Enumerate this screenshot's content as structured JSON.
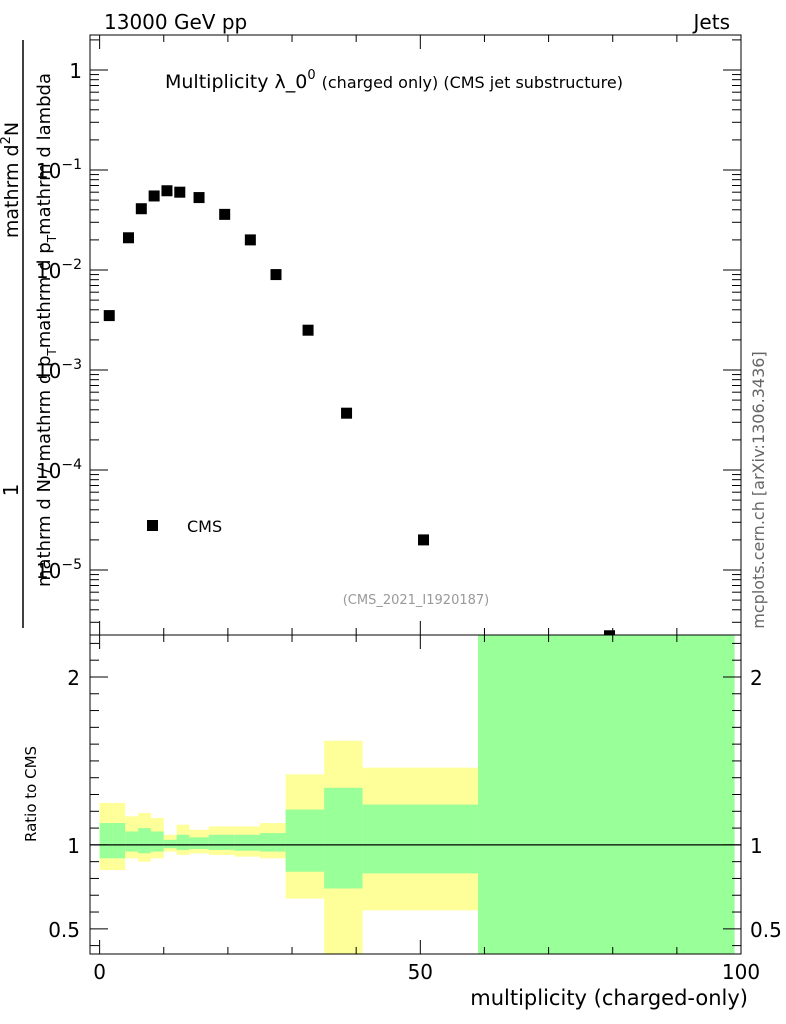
{
  "header": {
    "left": "13000 GeV pp",
    "right": "Jets"
  },
  "side_label": "mcplots.cern.ch [arXiv:1306.3436]",
  "chart_data": [
    {
      "type": "scatter",
      "title": "Multiplicity λ_0",
      "title_sup": "0",
      "subtitle": "(charged only) (CMS jet substructure)",
      "analysis_id": "(CMS_2021_I1920187)",
      "ylabel_top": "1",
      "ylabel_num": "mathrm d",
      "ylabel_num_sup": "2",
      "ylabel_num_tail": "N",
      "ylabel_den": "mathrm d N / mathrm d p",
      "ylabel_den_sub": "T",
      "ylabel_den_tail": "mathrm d p",
      "ylabel_den_sub2": "T",
      "ylabel_den_tail2": "mathrm d lambda",
      "xlim": [
        -1.5,
        100
      ],
      "ylim_log10": [
        -5.65,
        0.35
      ],
      "yscale": "log",
      "yticks": [
        {
          "value": 1,
          "label": "1"
        },
        {
          "value": 0.1,
          "label": "10",
          "sup": "−1"
        },
        {
          "value": 0.01,
          "label": "10",
          "sup": "−2"
        },
        {
          "value": 0.001,
          "label": "10",
          "sup": "−3"
        },
        {
          "value": 0.0001,
          "label": "10",
          "sup": "−4"
        },
        {
          "value": 1e-05,
          "label": "10",
          "sup": "−5"
        }
      ],
      "legend": {
        "label": "CMS",
        "placement": "lower-left"
      },
      "series": [
        {
          "name": "CMS",
          "x": [
            1.5,
            4.5,
            6.5,
            8.5,
            10.5,
            12.5,
            15.5,
            19.5,
            23.5,
            27.5,
            32.5,
            38.5,
            50.5,
            79.5
          ],
          "y": [
            0.0035,
            0.021,
            0.041,
            0.055,
            0.062,
            0.06,
            0.053,
            0.036,
            0.02,
            0.009,
            0.0025,
            0.00037,
            2e-05,
            2.2e-06
          ]
        }
      ]
    },
    {
      "type": "area",
      "ylabel": "Ratio to CMS",
      "xlabel": "multiplicity (charged-only)",
      "xlim": [
        -1.5,
        100
      ],
      "ylim": [
        0.35,
        2.25
      ],
      "xticks": [
        0,
        50,
        100
      ],
      "yticks": [
        0.5,
        1,
        2
      ],
      "bins": [
        {
          "lo": 0,
          "hi": 2,
          "y_lo": 0.85,
          "y_hi": 1.25,
          "g_lo": 0.92,
          "g_hi": 1.13
        },
        {
          "lo": 2,
          "hi": 4,
          "y_lo": 0.85,
          "y_hi": 1.25,
          "g_lo": 0.92,
          "g_hi": 1.13
        },
        {
          "lo": 4,
          "hi": 6,
          "y_lo": 0.92,
          "y_hi": 1.17,
          "g_lo": 0.96,
          "g_hi": 1.08
        },
        {
          "lo": 6,
          "hi": 8,
          "y_lo": 0.9,
          "y_hi": 1.19,
          "g_lo": 0.95,
          "g_hi": 1.1
        },
        {
          "lo": 8,
          "hi": 10,
          "y_lo": 0.92,
          "y_hi": 1.16,
          "g_lo": 0.96,
          "g_hi": 1.08
        },
        {
          "lo": 10,
          "hi": 12,
          "y_lo": 0.96,
          "y_hi": 1.06,
          "g_lo": 0.98,
          "g_hi": 1.03
        },
        {
          "lo": 12,
          "hi": 14,
          "y_lo": 0.94,
          "y_hi": 1.12,
          "g_lo": 0.97,
          "g_hi": 1.06
        },
        {
          "lo": 14,
          "hi": 17,
          "y_lo": 0.95,
          "y_hi": 1.09,
          "g_lo": 0.975,
          "g_hi": 1.045
        },
        {
          "lo": 17,
          "hi": 21,
          "y_lo": 0.94,
          "y_hi": 1.11,
          "g_lo": 0.97,
          "g_hi": 1.06
        },
        {
          "lo": 21,
          "hi": 25,
          "y_lo": 0.93,
          "y_hi": 1.11,
          "g_lo": 0.965,
          "g_hi": 1.06
        },
        {
          "lo": 25,
          "hi": 29,
          "y_lo": 0.92,
          "y_hi": 1.13,
          "g_lo": 0.96,
          "g_hi": 1.07
        },
        {
          "lo": 29,
          "hi": 35,
          "y_lo": 0.68,
          "y_hi": 1.42,
          "g_lo": 0.84,
          "g_hi": 1.21
        },
        {
          "lo": 35,
          "hi": 41,
          "y_lo": 0.35,
          "y_hi": 1.62,
          "g_lo": 0.74,
          "g_hi": 1.34
        },
        {
          "lo": 41,
          "hi": 59,
          "y_lo": 0.61,
          "y_hi": 1.46,
          "g_lo": 0.83,
          "g_hi": 1.24
        },
        {
          "lo": 59,
          "hi": 99,
          "y_lo": 0.35,
          "y_hi": 2.25,
          "g_lo": 0.35,
          "g_hi": 2.25
        }
      ],
      "colors": {
        "yellow": "#ffff99",
        "green": "#99ff99"
      }
    }
  ]
}
